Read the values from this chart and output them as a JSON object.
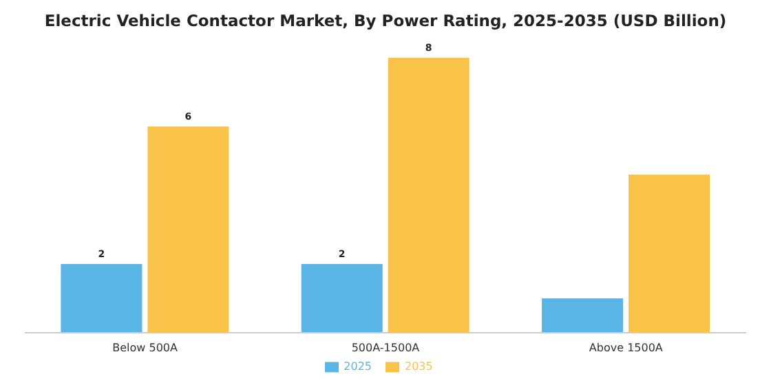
{
  "chart_data": {
    "type": "bar",
    "title": "Electric Vehicle Contactor Market, By Power Rating, 2025-2035 (USD Billion)",
    "categories": [
      "Below 500A",
      "500A-1500A",
      "Above 1500A"
    ],
    "series": [
      {
        "name": "2025",
        "color": "#5ab4e5",
        "values": [
          2,
          2,
          1.0
        ],
        "value_labels": [
          "2",
          "2",
          null
        ]
      },
      {
        "name": "2035",
        "color": "#f9c34a",
        "values": [
          6,
          8,
          4.6
        ],
        "value_labels": [
          "6",
          "8",
          null
        ]
      }
    ],
    "legend": "bottom",
    "grid": false
  }
}
